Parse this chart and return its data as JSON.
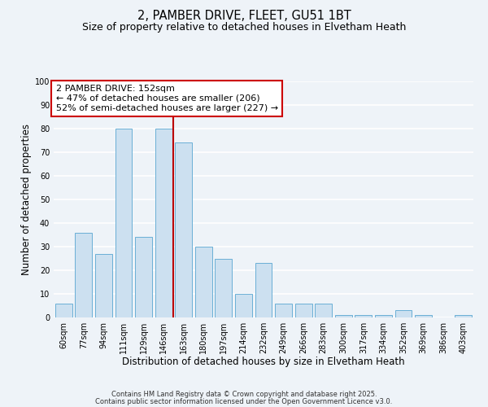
{
  "title_line1": "2, PAMBER DRIVE, FLEET, GU51 1BT",
  "title_line2": "Size of property relative to detached houses in Elvetham Heath",
  "xlabel": "Distribution of detached houses by size in Elvetham Heath",
  "ylabel": "Number of detached properties",
  "categories": [
    "60sqm",
    "77sqm",
    "94sqm",
    "111sqm",
    "129sqm",
    "146sqm",
    "163sqm",
    "180sqm",
    "197sqm",
    "214sqm",
    "232sqm",
    "249sqm",
    "266sqm",
    "283sqm",
    "300sqm",
    "317sqm",
    "334sqm",
    "352sqm",
    "369sqm",
    "386sqm",
    "403sqm"
  ],
  "values": [
    6,
    36,
    27,
    80,
    34,
    80,
    74,
    30,
    25,
    10,
    23,
    6,
    6,
    6,
    1,
    1,
    1,
    3,
    1,
    0,
    1
  ],
  "bar_color": "#cce0f0",
  "bar_edge_color": "#6aafd6",
  "bar_width": 0.85,
  "vline_x": 5.5,
  "vline_color": "#bb0000",
  "ylim": [
    0,
    100
  ],
  "yticks": [
    0,
    10,
    20,
    30,
    40,
    50,
    60,
    70,
    80,
    90,
    100
  ],
  "annotation_text": "2 PAMBER DRIVE: 152sqm\n← 47% of detached houses are smaller (206)\n52% of semi-detached houses are larger (227) →",
  "annotation_box_facecolor": "#ffffff",
  "annotation_box_edgecolor": "#cc0000",
  "bg_color": "#eef3f8",
  "plot_bg_color": "#eef3f8",
  "grid_color": "#ffffff",
  "footer1": "Contains HM Land Registry data © Crown copyright and database right 2025.",
  "footer2": "Contains public sector information licensed under the Open Government Licence v3.0.",
  "title_fontsize": 10.5,
  "subtitle_fontsize": 9,
  "axis_label_fontsize": 8.5,
  "tick_fontsize": 7,
  "annotation_fontsize": 8,
  "footer_fontsize": 6
}
